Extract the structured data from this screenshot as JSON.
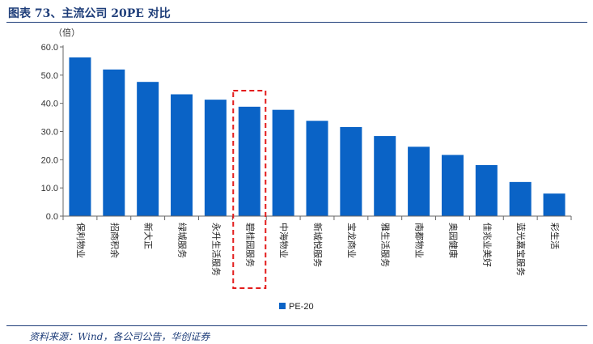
{
  "figure": {
    "title": "图表 73、主流公司 20PE 对比",
    "source": "资料来源：Wind，各公司公告，华创证券"
  },
  "colors": {
    "bar": "#0a63c6",
    "highlight": "#e31c1c",
    "rule": "#1f3e7a"
  },
  "chart_data": {
    "type": "bar",
    "ylabel": "（倍）",
    "ylim": [
      0,
      60
    ],
    "yticks": [
      "0.0",
      "10.0",
      "20.0",
      "30.0",
      "40.0",
      "50.0",
      "60.0"
    ],
    "categories": [
      "保利物业",
      "招商积余",
      "新大正",
      "绿城服务",
      "永升生活服务",
      "碧桂园服务",
      "中海物业",
      "新城悦服务",
      "宝龙商业",
      "雅生活服务",
      "南都物业",
      "奥园健康",
      "佳兆业美好",
      "蓝光嘉宝服务",
      "彩生活"
    ],
    "series": [
      {
        "name": "PE-20",
        "values": [
          56.3,
          52.0,
          47.6,
          43.2,
          41.3,
          38.8,
          37.7,
          33.8,
          31.6,
          28.4,
          24.6,
          21.7,
          18.1,
          12.1,
          8.0
        ]
      }
    ],
    "highlight_category": "碧桂园服务",
    "grid": false,
    "legend": "bottom-center"
  }
}
